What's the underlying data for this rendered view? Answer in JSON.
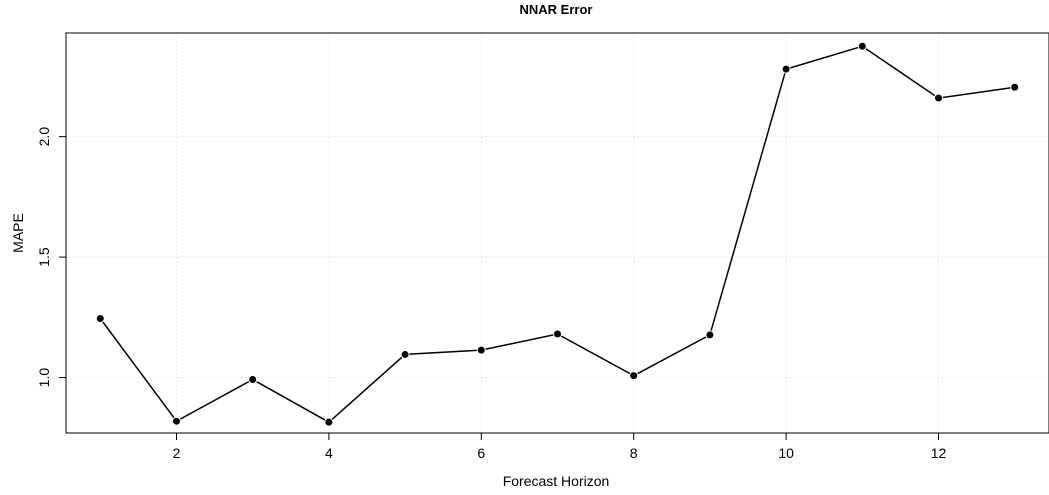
{
  "chart_data": {
    "type": "line",
    "title": "NNAR Error",
    "xlabel": "Forecast Horizon",
    "ylabel": "MAPE",
    "x": [
      1,
      2,
      3,
      4,
      5,
      6,
      7,
      8,
      9,
      10,
      11,
      12,
      13
    ],
    "series": [
      {
        "values": [
          1.245,
          0.819,
          0.992,
          0.815,
          1.096,
          1.114,
          1.181,
          1.008,
          1.177,
          2.28,
          2.375,
          2.16,
          2.205
        ]
      }
    ],
    "xlim": [
      0.55,
      13.45
    ],
    "ylim": [
      0.77,
      2.43
    ],
    "xticks": [
      2,
      4,
      6,
      8,
      10,
      12
    ],
    "yticks": [
      1.0,
      1.5,
      2.0
    ],
    "xtick_labels": [
      "2",
      "4",
      "6",
      "8",
      "10",
      "12"
    ],
    "ytick_labels": [
      "1.0",
      "1.5",
      "2.0"
    ],
    "grid": true,
    "colors": {
      "line": "#000000",
      "grid": "#d9d9d9",
      "background": "#ffffff"
    }
  }
}
